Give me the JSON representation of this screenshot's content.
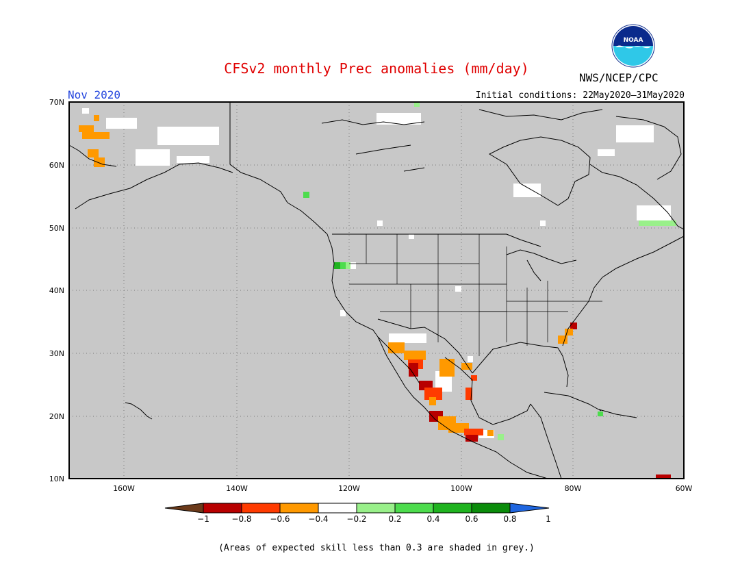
{
  "title": "CFSv2 monthly Prec anomalies (mm/day)",
  "agency": "NWS/NCEP/CPC",
  "logo_text": "NOAA",
  "month": "Nov 2020",
  "initial_conditions": "Initial conditions: 22May2020–31May2020",
  "lat_labels": [
    "70N",
    "60N",
    "50N",
    "40N",
    "30N",
    "20N",
    "10N"
  ],
  "lon_labels": [
    "160W",
    "140W",
    "120W",
    "100W",
    "80W",
    "60W"
  ],
  "colorbar_ticks": [
    "−1",
    "−0.8",
    "−0.6",
    "−0.4",
    "−0.2",
    "0.2",
    "0.4",
    "0.6",
    "0.8",
    "1"
  ],
  "colorbar_colors": [
    "#6b3a1a",
    "#b80000",
    "#ff3b00",
    "#ff9900",
    "#ffffff",
    "#99f08a",
    "#4ddc4d",
    "#1fb31f",
    "#0a8c0a",
    "#1f66e0"
  ],
  "colors": {
    "skill_grey": "#c8c8c8",
    "title_red": "#e00000",
    "month_blue": "#2244dd"
  },
  "note": "(Areas of expected skill less than 0.3 are shaded in grey.)"
}
